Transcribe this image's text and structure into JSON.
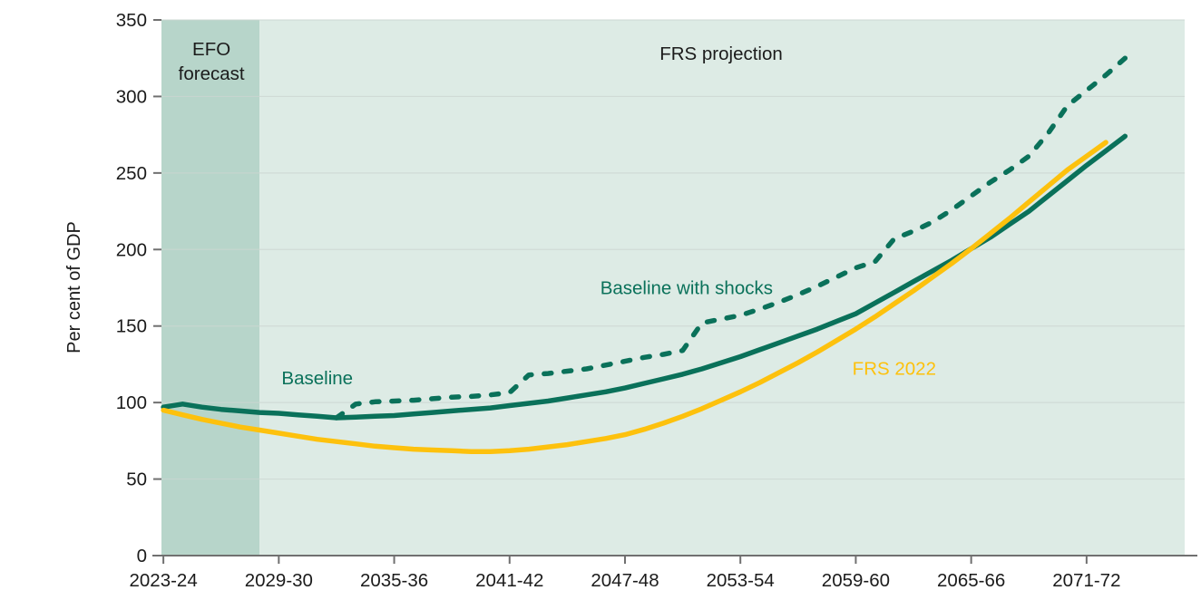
{
  "page": {
    "background": "#ffffff"
  },
  "chart_data": {
    "type": "line",
    "title": "",
    "ylabel": "Per cent of GDP",
    "xlabel": "",
    "ylim": [
      0,
      350
    ],
    "xlim": [
      2022.9,
      2076.1
    ],
    "yticks": [
      0,
      50,
      100,
      150,
      200,
      250,
      300,
      350
    ],
    "xticks": [
      {
        "year": 2023,
        "label": "2023-24"
      },
      {
        "year": 2029,
        "label": "2029-30"
      },
      {
        "year": 2035,
        "label": "2035-36"
      },
      {
        "year": 2041,
        "label": "2041-42"
      },
      {
        "year": 2047,
        "label": "2047-48"
      },
      {
        "year": 2053,
        "label": "2053-54"
      },
      {
        "year": 2059,
        "label": "2059-60"
      },
      {
        "year": 2065,
        "label": "2065-66"
      },
      {
        "year": 2071,
        "label": "2071-72"
      }
    ],
    "grid": "horizontal",
    "legend_position": "inline-annotations",
    "colors": {
      "teal": "#0a715a",
      "yellow": "#fdc10d",
      "efo_band": "#b7d5ca",
      "frs_band": "#ddebe5",
      "gridline": "#ccd6d1",
      "axis": "#707070",
      "text": "#1b1b1b"
    },
    "regions": [
      {
        "id": "efo",
        "label": "EFO forecast",
        "from": 2022.9,
        "to": 2028,
        "color": "#b7d5ca"
      },
      {
        "id": "frs",
        "label": "FRS projection",
        "from": 2028,
        "to": 2076.1,
        "color": "#ddebe5"
      }
    ],
    "annotations": [
      {
        "id": "efo-forecast",
        "text": "EFO\nforecast",
        "year": 2025.5,
        "value": 327,
        "color": "#1b1b1b"
      },
      {
        "id": "frs-projection",
        "text": "FRS projection",
        "year": 2052,
        "value": 324,
        "color": "#1b1b1b"
      },
      {
        "id": "baseline",
        "text": "Baseline",
        "year": 2031,
        "value": 112,
        "color": "#0a715a"
      },
      {
        "id": "baseline-with-shocks",
        "text": "Baseline with shocks",
        "year": 2050.2,
        "value": 171,
        "color": "#0a715a"
      },
      {
        "id": "frs-2022",
        "text": "FRS 2022",
        "year": 2061,
        "value": 118,
        "color": "#fdc10d"
      }
    ],
    "series": [
      {
        "name": "Baseline",
        "style": "solid",
        "color": "#0a715a",
        "points": [
          [
            2023,
            97
          ],
          [
            2024,
            99
          ],
          [
            2025,
            97
          ],
          [
            2026,
            95.5
          ],
          [
            2027,
            94.5
          ],
          [
            2028,
            93.5
          ],
          [
            2029,
            93
          ],
          [
            2030,
            92
          ],
          [
            2031,
            91
          ],
          [
            2032,
            90
          ],
          [
            2033,
            90.5
          ],
          [
            2034,
            91
          ],
          [
            2035,
            91.5
          ],
          [
            2036,
            92.5
          ],
          [
            2037,
            93.5
          ],
          [
            2038,
            94.5
          ],
          [
            2039,
            95.5
          ],
          [
            2040,
            96.5
          ],
          [
            2041,
            98
          ],
          [
            2042,
            99.5
          ],
          [
            2043,
            101
          ],
          [
            2044,
            103
          ],
          [
            2045,
            105
          ],
          [
            2046,
            107
          ],
          [
            2047,
            109.5
          ],
          [
            2048,
            112.5
          ],
          [
            2049,
            115.5
          ],
          [
            2050,
            118.5
          ],
          [
            2051,
            122
          ],
          [
            2052,
            126
          ],
          [
            2053,
            130
          ],
          [
            2054,
            134.5
          ],
          [
            2055,
            139
          ],
          [
            2056,
            143.5
          ],
          [
            2057,
            148
          ],
          [
            2058,
            153
          ],
          [
            2059,
            158
          ],
          [
            2060,
            165
          ],
          [
            2061,
            172
          ],
          [
            2062,
            179
          ],
          [
            2063,
            186
          ],
          [
            2064,
            193
          ],
          [
            2065,
            200.5
          ],
          [
            2066,
            208
          ],
          [
            2067,
            216.5
          ],
          [
            2068,
            225
          ],
          [
            2069,
            235
          ],
          [
            2070,
            245
          ],
          [
            2071,
            255
          ],
          [
            2072,
            264.5
          ],
          [
            2073,
            274
          ]
        ]
      },
      {
        "name": "Baseline with shocks",
        "style": "dashed",
        "color": "#0a715a",
        "points": [
          [
            2032,
            90
          ],
          [
            2033,
            99
          ],
          [
            2034,
            100.5
          ],
          [
            2035,
            101
          ],
          [
            2036,
            101.5
          ],
          [
            2037,
            102.5
          ],
          [
            2038,
            103.5
          ],
          [
            2039,
            104
          ],
          [
            2040,
            105
          ],
          [
            2041,
            106.5
          ],
          [
            2042,
            118
          ],
          [
            2043,
            119
          ],
          [
            2044,
            120.5
          ],
          [
            2045,
            122
          ],
          [
            2046,
            124.5
          ],
          [
            2047,
            127
          ],
          [
            2048,
            129.5
          ],
          [
            2049,
            131.5
          ],
          [
            2050,
            134
          ],
          [
            2051,
            152
          ],
          [
            2052,
            154.5
          ],
          [
            2053,
            157
          ],
          [
            2054,
            161
          ],
          [
            2055,
            165.5
          ],
          [
            2056,
            170.5
          ],
          [
            2057,
            176
          ],
          [
            2058,
            182
          ],
          [
            2059,
            188
          ],
          [
            2060,
            192
          ],
          [
            2061,
            207
          ],
          [
            2062,
            212
          ],
          [
            2063,
            218
          ],
          [
            2064,
            226
          ],
          [
            2065,
            235
          ],
          [
            2066,
            244
          ],
          [
            2067,
            252
          ],
          [
            2068,
            261
          ],
          [
            2069,
            276
          ],
          [
            2070,
            294
          ],
          [
            2071,
            304
          ],
          [
            2072,
            314
          ],
          [
            2073,
            325
          ]
        ]
      },
      {
        "name": "FRS 2022",
        "style": "solid",
        "color": "#fdc10d",
        "points": [
          [
            2023,
            95
          ],
          [
            2024,
            92
          ],
          [
            2025,
            89
          ],
          [
            2026,
            86.5
          ],
          [
            2027,
            84
          ],
          [
            2028,
            82
          ],
          [
            2029,
            80
          ],
          [
            2030,
            78
          ],
          [
            2031,
            76
          ],
          [
            2032,
            74.5
          ],
          [
            2033,
            73
          ],
          [
            2034,
            71.5
          ],
          [
            2035,
            70.5
          ],
          [
            2036,
            69.5
          ],
          [
            2037,
            69
          ],
          [
            2038,
            68.5
          ],
          [
            2039,
            68
          ],
          [
            2040,
            68
          ],
          [
            2041,
            68.5
          ],
          [
            2042,
            69.5
          ],
          [
            2043,
            71
          ],
          [
            2044,
            72.5
          ],
          [
            2045,
            74.5
          ],
          [
            2046,
            76.5
          ],
          [
            2047,
            79
          ],
          [
            2048,
            82.5
          ],
          [
            2049,
            86.5
          ],
          [
            2050,
            91
          ],
          [
            2051,
            96
          ],
          [
            2052,
            101.5
          ],
          [
            2053,
            107
          ],
          [
            2054,
            113
          ],
          [
            2055,
            119.5
          ],
          [
            2056,
            126
          ],
          [
            2057,
            133
          ],
          [
            2058,
            140.5
          ],
          [
            2059,
            148
          ],
          [
            2060,
            156
          ],
          [
            2061,
            164.5
          ],
          [
            2062,
            173
          ],
          [
            2063,
            182
          ],
          [
            2064,
            191
          ],
          [
            2065,
            200.5
          ],
          [
            2066,
            210.5
          ],
          [
            2067,
            220.5
          ],
          [
            2068,
            231
          ],
          [
            2069,
            241.5
          ],
          [
            2070,
            252
          ],
          [
            2071,
            261
          ],
          [
            2072,
            270
          ]
        ]
      }
    ]
  }
}
